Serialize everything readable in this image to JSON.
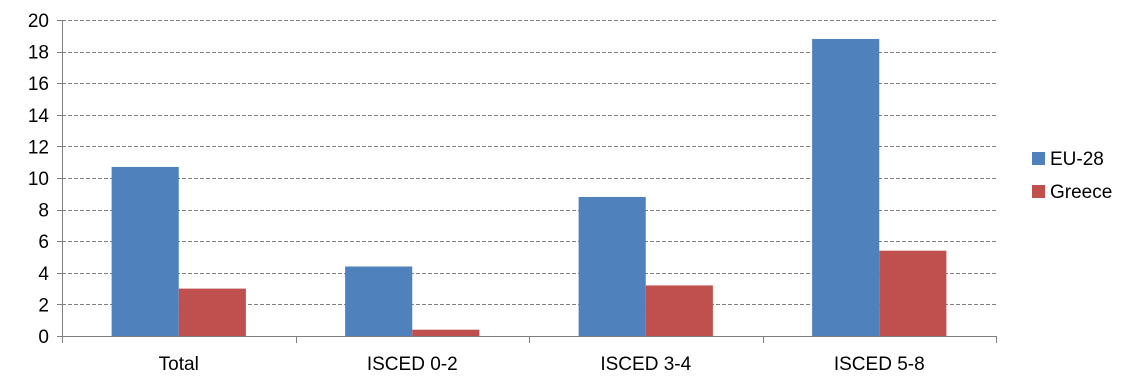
{
  "chart_data": {
    "type": "bar",
    "categories": [
      "Total",
      "ISCED 0-2",
      "ISCED 3-4",
      "ISCED 5-8"
    ],
    "series": [
      {
        "name": "EU-28",
        "values": [
          10.7,
          4.4,
          8.8,
          18.8
        ]
      },
      {
        "name": "Greece",
        "values": [
          3.0,
          0.4,
          3.2,
          5.4
        ]
      }
    ],
    "title": "",
    "xlabel": "",
    "ylabel": "",
    "ylim": [
      0,
      20
    ],
    "yticks": [
      0,
      2,
      4,
      6,
      8,
      10,
      12,
      14,
      16,
      18,
      20
    ],
    "grid": true,
    "legend_position": "right"
  },
  "colors": {
    "EU-28": "#4f81bd",
    "Greece": "#c0504d",
    "grid": "#7f7f7f",
    "axis": "#7f7f7f"
  }
}
